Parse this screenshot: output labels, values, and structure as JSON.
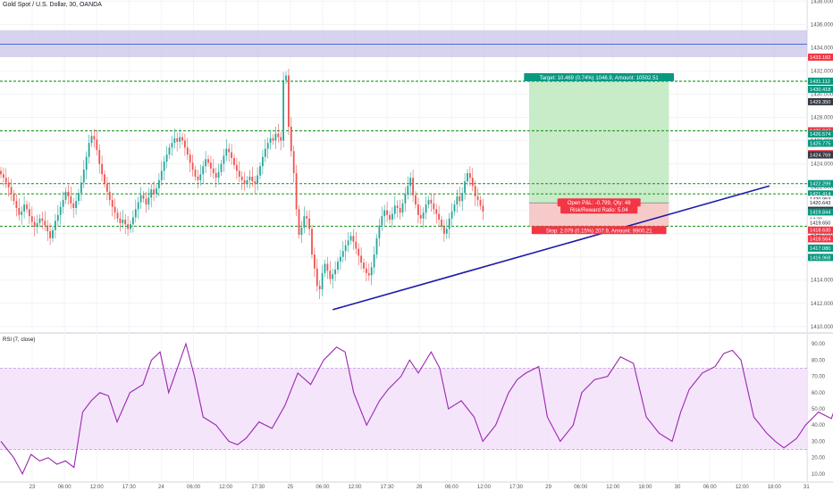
{
  "header": {
    "symbol_title": "Gold Spot / U.S. Dollar, 30, OANDA"
  },
  "rsi": {
    "title": "RSI (7, close)"
  },
  "colors": {
    "up": "#26a69a",
    "down": "#ef5350",
    "trendline": "#1c1ca8",
    "level": "#2e9e2e",
    "zone_fill": "#c9c3e8",
    "zone_line": "#4a6fd6",
    "target_fill": "#c8ebc8",
    "stop_fill": "#f7caca",
    "rsi_line": "#9b27b0",
    "rsi_band": "#f1defa"
  },
  "chart_data": [
    {
      "type": "candlestick",
      "title": "Gold Spot / U.S. Dollar, 30, OANDA",
      "ylim": [
        1409.6,
        1438.1
      ],
      "yticks": [
        "1438.000",
        "1436.000",
        "1434.000",
        "1432.000",
        "1430.000",
        "1428.000",
        "1426.000",
        "1424.000",
        "1422.000",
        "1420.000",
        "1418.000",
        "1416.000",
        "1414.000",
        "1412.000",
        "1410.000"
      ],
      "xticks": [
        "23",
        "06:00",
        "12:00",
        "17:30",
        "24",
        "06:00",
        "12:00",
        "17:30",
        "25",
        "06:00",
        "12:00",
        "17:30",
        "26",
        "06:00",
        "12:00",
        "17:30",
        "29",
        "06:00",
        "12:00",
        "18:00",
        "30",
        "06:00",
        "12:00",
        "18:00",
        "31"
      ],
      "candles_close": [
        1423.1,
        1422.8,
        1422.4,
        1422.0,
        1421.4,
        1420.8,
        1420.2,
        1419.6,
        1419.9,
        1420.5,
        1420.1,
        1419.5,
        1419.0,
        1418.6,
        1418.9,
        1419.3,
        1419.1,
        1418.7,
        1418.2,
        1417.6,
        1418.3,
        1419.1,
        1419.6,
        1420.3,
        1420.9,
        1421.6,
        1421.2,
        1420.6,
        1420.2,
        1420.8,
        1421.5,
        1422.4,
        1423.5,
        1424.6,
        1425.8,
        1426.4,
        1426.1,
        1425.2,
        1424.0,
        1423.1,
        1422.3,
        1421.6,
        1420.9,
        1420.3,
        1419.8,
        1419.3,
        1418.9,
        1419.2,
        1418.8,
        1418.4,
        1418.8,
        1419.4,
        1420.1,
        1420.7,
        1421.3,
        1421.0,
        1420.5,
        1421.1,
        1421.8,
        1421.4,
        1421.9,
        1422.6,
        1423.4,
        1424.2,
        1424.8,
        1425.4,
        1425.8,
        1426.2,
        1425.9,
        1426.3,
        1426.0,
        1425.4,
        1424.8,
        1424.1,
        1423.5,
        1422.9,
        1422.6,
        1423.1,
        1423.8,
        1424.4,
        1424.1,
        1423.6,
        1423.2,
        1422.8,
        1423.3,
        1424.0,
        1424.7,
        1425.3,
        1425.0,
        1424.5,
        1423.9,
        1423.4,
        1422.9,
        1422.6,
        1422.3,
        1422.6,
        1422.9,
        1422.5,
        1422.3,
        1423.0,
        1423.8,
        1424.6,
        1425.3,
        1425.8,
        1426.2,
        1426.0,
        1426.6,
        1426.3,
        1426.0,
        1431.2,
        1431.6,
        1427.2,
        1425.1,
        1423.2,
        1420.1,
        1417.9,
        1418.5,
        1419.5,
        1419.3,
        1418.4,
        1416.2,
        1415.0,
        1413.5,
        1413.2,
        1414.6,
        1415.4,
        1414.8,
        1414.1,
        1414.5,
        1414.9,
        1415.6,
        1416.0,
        1416.5,
        1417.0,
        1417.4,
        1417.8,
        1417.3,
        1416.7,
        1416.1,
        1415.5,
        1415.0,
        1414.6,
        1414.4,
        1415.1,
        1416.2,
        1417.6,
        1418.7,
        1419.5,
        1420.0,
        1419.6,
        1419.2,
        1419.7,
        1420.4,
        1420.2,
        1419.8,
        1420.6,
        1421.4,
        1422.1,
        1422.8,
        1421.3,
        1420.5,
        1419.6,
        1419.3,
        1419.8,
        1420.5,
        1420.9,
        1420.6,
        1420.1,
        1419.7,
        1419.2,
        1418.6,
        1418.0,
        1418.4,
        1419.3,
        1419.9,
        1420.5,
        1421.2,
        1420.8,
        1421.5,
        1422.5,
        1423.2,
        1422.8,
        1422.1,
        1421.2,
        1420.9,
        1420.4,
        1419.9
      ],
      "levels": [
        1431.112,
        1426.847,
        1422.299,
        1421.414,
        1418.63
      ],
      "resistance_zone": [
        1433.182,
        1435.5
      ],
      "zone_line": 1434.3,
      "trendline": {
        "from": [
          128,
          1411.45
        ],
        "to": [
          281,
          1422.1
        ]
      },
      "position": {
        "x_from": 190,
        "x_to": 236,
        "entry": 1420.643,
        "target": 1431.112,
        "stop": 1418.564
      },
      "target_label": "Target: 10.469 (0.74%) 1046.9, Amount: 10502.51",
      "pnl_label": "Open P&L: -0.799, Qty: 48",
      "rr_label": "Risk/Reward Ratio: 5.04",
      "stop_label": "Stop: 2.079 (0.15%) 207.9, Amount: 9900.21",
      "price_tags": [
        {
          "value": "1433.182",
          "price": 1433.182,
          "bg": "#f23645",
          "fg": "#ffffff"
        },
        {
          "value": "1431.112",
          "price": 1431.112,
          "bg": "#089981",
          "fg": "#ffffff"
        },
        {
          "value": "1430.418",
          "price": 1430.418,
          "bg": "#089981",
          "fg": "#ffffff"
        },
        {
          "value": "1429.350",
          "price": 1429.35,
          "bg": "#363a45",
          "fg": "#ffffff"
        },
        {
          "value": "1426.847",
          "price": 1426.847,
          "bg": "#f23645",
          "fg": "#ffffff"
        },
        {
          "value": "1426.574",
          "price": 1426.574,
          "bg": "#089981",
          "fg": "#ffffff"
        },
        {
          "value": "1425.775",
          "price": 1425.775,
          "bg": "#089981",
          "fg": "#ffffff"
        },
        {
          "value": "1424.876",
          "price": 1424.876,
          "bg": "#f23645",
          "fg": "#ffffff"
        },
        {
          "value": "1424.769",
          "price": 1424.769,
          "bg": "#363a45",
          "fg": "#ffffff"
        },
        {
          "value": "1422.299",
          "price": 1422.299,
          "bg": "#089981",
          "fg": "#ffffff"
        },
        {
          "value": "1421.414",
          "price": 1421.414,
          "bg": "#089981",
          "fg": "#ffffff"
        },
        {
          "value": "1420.953",
          "price": 1420.953,
          "bg": "#ffffff",
          "fg": "#131722"
        },
        {
          "value": "1420.643",
          "price": 1420.643,
          "bg": "#ffffff",
          "fg": "#131722"
        },
        {
          "value": "1420.004",
          "price": 1420.004,
          "bg": "#363a45",
          "fg": "#ffffff"
        },
        {
          "value": "1419.844",
          "price": 1419.844,
          "bg": "#089981",
          "fg": "#ffffff"
        },
        {
          "value": "14:30",
          "price": 1419.25,
          "bg": "#ffffff",
          "fg": "#131722"
        },
        {
          "value": "1419.650",
          "price": 1418.95,
          "bg": "#ffffff",
          "fg": "#131722"
        },
        {
          "value": "1418.630",
          "price": 1418.3,
          "bg": "#f23645",
          "fg": "#ffffff"
        },
        {
          "value": "1418.564",
          "price": 1417.55,
          "bg": "#f23645",
          "fg": "#ffffff"
        },
        {
          "value": "1417.080",
          "price": 1416.75,
          "bg": "#089981",
          "fg": "#ffffff"
        },
        {
          "value": "1416.968",
          "price": 1415.95,
          "bg": "#089981",
          "fg": "#ffffff"
        }
      ]
    },
    {
      "type": "line",
      "title": "RSI (7, close)",
      "ylim": [
        5,
        95
      ],
      "yticks": [
        "90.00",
        "80.00",
        "70.00",
        "60.00",
        "50.00",
        "40.00",
        "30.00",
        "20.00",
        "10.00"
      ],
      "band": [
        25,
        75
      ],
      "x": [
        0,
        3,
        5,
        7,
        9,
        11,
        13,
        15,
        17,
        19,
        21,
        23,
        25,
        27,
        30,
        33,
        35,
        37,
        39,
        41,
        43,
        45,
        47,
        50,
        53,
        55,
        57,
        60,
        63,
        66,
        69,
        72,
        75,
        78,
        80,
        82,
        85,
        88,
        90,
        93,
        95,
        97,
        100,
        102,
        104,
        107,
        110,
        112,
        115,
        118,
        120,
        122,
        125,
        127,
        130,
        133,
        135,
        138,
        141,
        144,
        147,
        150,
        153,
        156,
        158,
        160,
        163,
        166,
        168,
        170,
        172,
        175,
        178,
        180,
        182,
        185,
        187,
        190,
        193,
        195,
        198,
        201,
        204,
        206,
        209,
        212,
        215,
        218,
        220,
        222,
        225,
        228,
        231,
        234,
        237,
        240,
        243,
        246,
        249,
        252,
        255,
        258,
        261,
        264,
        267,
        270,
        273,
        276,
        279,
        282,
        285,
        288,
        291,
        294,
        297,
        300,
        303,
        306,
        309,
        312,
        314
      ],
      "values": [
        30,
        20,
        10,
        22,
        18,
        20,
        16,
        18,
        14,
        48,
        55,
        60,
        58,
        42,
        60,
        65,
        80,
        85,
        60,
        75,
        90,
        70,
        45,
        40,
        30,
        28,
        32,
        42,
        38,
        52,
        72,
        65,
        80,
        88,
        85,
        60,
        40,
        55,
        62,
        70,
        80,
        72,
        85,
        75,
        50,
        55,
        45,
        30,
        40,
        60,
        68,
        72,
        76,
        45,
        30,
        40,
        60,
        68,
        70,
        82,
        78,
        45,
        35,
        30,
        48,
        62,
        72,
        76,
        84,
        86,
        80,
        45,
        35,
        30,
        26,
        32,
        40,
        48,
        44,
        58,
        64,
        60,
        68,
        70,
        60,
        48,
        40,
        52,
        48,
        60,
        72,
        76,
        72,
        80,
        70,
        52,
        46,
        56,
        62,
        54,
        48,
        58,
        50,
        42,
        48,
        60,
        64,
        52,
        35,
        30,
        60,
        65,
        72,
        70,
        78,
        76,
        62,
        50,
        44,
        38,
        42
      ]
    }
  ]
}
